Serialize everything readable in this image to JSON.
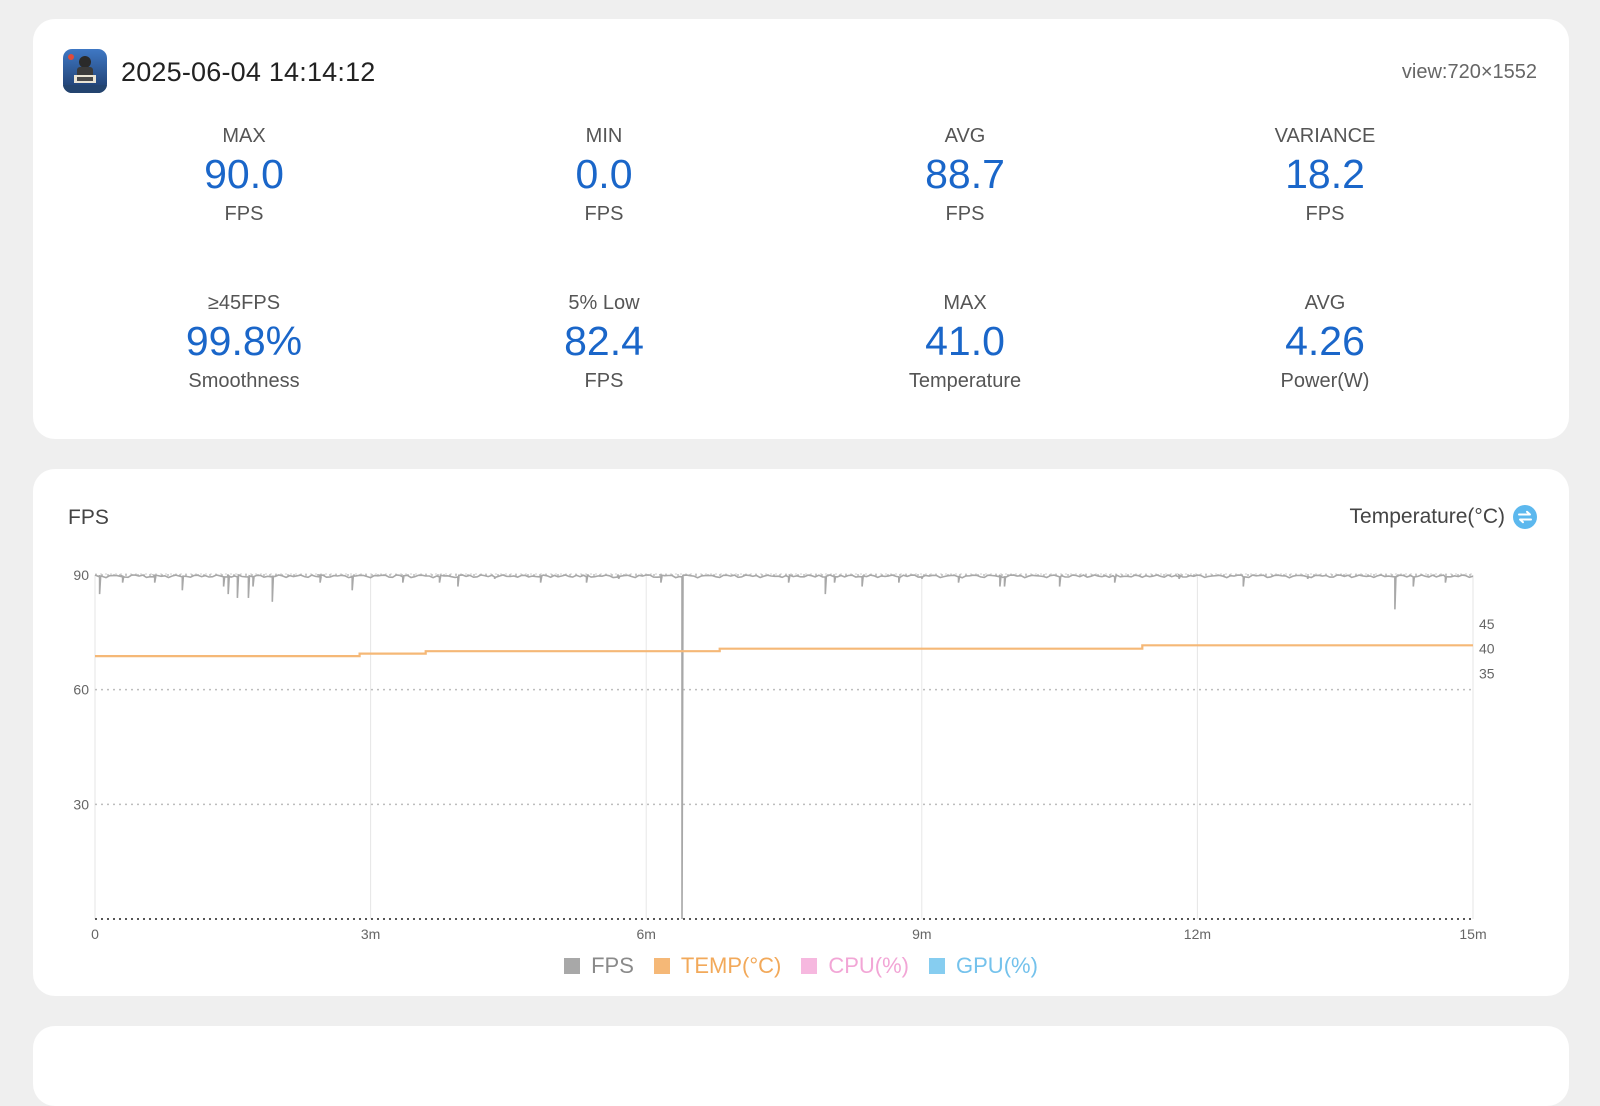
{
  "header": {
    "timestamp": "2025-06-04 14:14:12",
    "view": "view:720×1552",
    "app_icon": "game-app-icon"
  },
  "stats": [
    {
      "label": "MAX",
      "value": "90.0",
      "unit": "FPS"
    },
    {
      "label": "MIN",
      "value": "0.0",
      "unit": "FPS"
    },
    {
      "label": "AVG",
      "value": "88.7",
      "unit": "FPS"
    },
    {
      "label": "VARIANCE",
      "value": "18.2",
      "unit": "FPS"
    },
    {
      "label": "≥45FPS",
      "value": "99.8%",
      "unit": "Smoothness"
    },
    {
      "label": "5% Low",
      "value": "82.4",
      "unit": "FPS"
    },
    {
      "label": "MAX",
      "value": "41.0",
      "unit": "Temperature"
    },
    {
      "label": "AVG",
      "value": "4.26",
      "unit": "Power(W)"
    }
  ],
  "colors": {
    "accent_value": "#1a66c9",
    "fps_line": "#a8a8a8",
    "temp_line": "#f5b877",
    "cpu": "#f6b8df",
    "gpu": "#86cdf0",
    "swap_icon": "#5cb8ee"
  },
  "chart_data": {
    "type": "line",
    "left_axis_title": "FPS",
    "right_axis_title": "Temperature(°C)",
    "right_axis_icon": "swap-icon",
    "x_ticks": [
      "0",
      "3m",
      "6m",
      "9m",
      "12m",
      "15m"
    ],
    "y_left_ticks": [
      "90",
      "60",
      "30"
    ],
    "y_left_range": [
      0,
      90
    ],
    "y_right_ticks": [
      "45",
      "40",
      "35"
    ],
    "y_right_range": [
      -15,
      55
    ],
    "x_range_minutes": [
      0,
      15
    ],
    "grid": "dotted horizontal, vertical at x ticks",
    "legend_position": "bottom-center",
    "legend": [
      {
        "name": "FPS",
        "color": "#a8a8a8"
      },
      {
        "name": "TEMP(°C)",
        "color": "#f5b877"
      },
      {
        "name": "CPU(%)",
        "color": "#f6b8df"
      },
      {
        "name": "GPU(%)",
        "color": "#86cdf0"
      }
    ],
    "series": [
      {
        "name": "FPS",
        "baseline": 90,
        "dips": [
          {
            "t": 0.05,
            "v": 85
          },
          {
            "t": 0.3,
            "v": 88
          },
          {
            "t": 0.65,
            "v": 88
          },
          {
            "t": 0.95,
            "v": 86
          },
          {
            "t": 1.4,
            "v": 87
          },
          {
            "t": 1.45,
            "v": 85
          },
          {
            "t": 1.55,
            "v": 84
          },
          {
            "t": 1.67,
            "v": 84
          },
          {
            "t": 1.72,
            "v": 87
          },
          {
            "t": 1.93,
            "v": 83
          },
          {
            "t": 2.45,
            "v": 88
          },
          {
            "t": 2.8,
            "v": 86
          },
          {
            "t": 3.35,
            "v": 88
          },
          {
            "t": 3.75,
            "v": 88
          },
          {
            "t": 3.95,
            "v": 87
          },
          {
            "t": 4.35,
            "v": 89
          },
          {
            "t": 4.85,
            "v": 88
          },
          {
            "t": 5.35,
            "v": 88
          },
          {
            "t": 5.7,
            "v": 89
          },
          {
            "t": 6.16,
            "v": 88
          },
          {
            "t": 6.39,
            "v": 0
          },
          {
            "t": 7.55,
            "v": 88
          },
          {
            "t": 7.95,
            "v": 85
          },
          {
            "t": 8.05,
            "v": 88
          },
          {
            "t": 8.35,
            "v": 87
          },
          {
            "t": 8.75,
            "v": 88
          },
          {
            "t": 9.0,
            "v": 89
          },
          {
            "t": 9.4,
            "v": 88
          },
          {
            "t": 9.85,
            "v": 87
          },
          {
            "t": 9.9,
            "v": 87
          },
          {
            "t": 10.5,
            "v": 87
          },
          {
            "t": 11.1,
            "v": 88
          },
          {
            "t": 11.8,
            "v": 89
          },
          {
            "t": 12.5,
            "v": 87
          },
          {
            "t": 13.2,
            "v": 89
          },
          {
            "t": 14.15,
            "v": 81
          },
          {
            "t": 14.35,
            "v": 87
          },
          {
            "t": 14.7,
            "v": 88
          }
        ]
      },
      {
        "name": "TEMP(°C)",
        "points": [
          {
            "t": 0,
            "v": 38.5
          },
          {
            "t": 2.88,
            "v": 38.5
          },
          {
            "t": 2.88,
            "v": 39.0
          },
          {
            "t": 3.6,
            "v": 39.0
          },
          {
            "t": 3.6,
            "v": 39.5
          },
          {
            "t": 6.8,
            "v": 39.5
          },
          {
            "t": 6.8,
            "v": 40.0
          },
          {
            "t": 11.4,
            "v": 40.0
          },
          {
            "t": 11.4,
            "v": 40.7
          },
          {
            "t": 15,
            "v": 40.7
          }
        ]
      }
    ]
  }
}
